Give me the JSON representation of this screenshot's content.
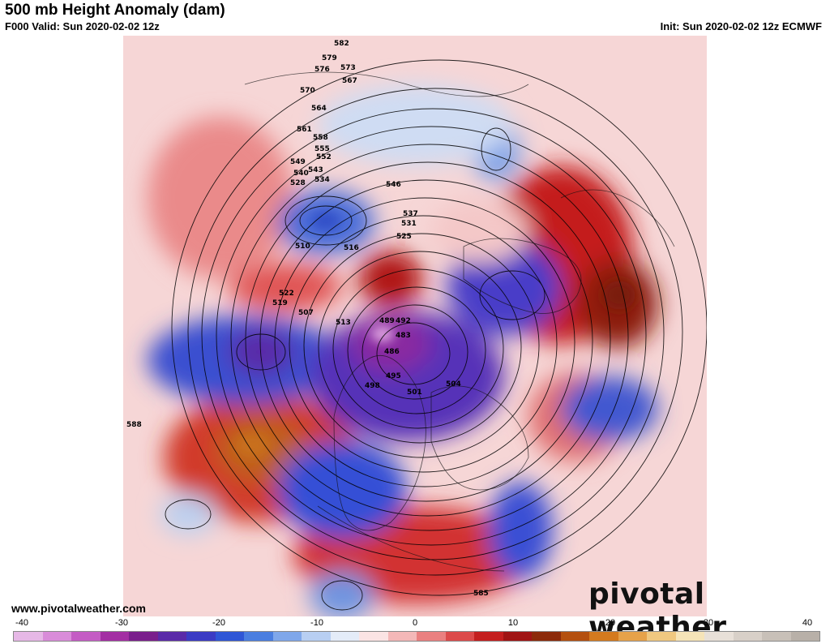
{
  "header": {
    "title": "500 mb Height Anomaly (dam)",
    "valid": "F000 Valid: Sun 2020-02-02 12z",
    "init": "Init: Sun 2020-02-02 12z ECMWF"
  },
  "footer": {
    "url": "www.pivotalweather.com",
    "brand": "pivotal weather"
  },
  "colorbar": {
    "ticks": [
      "-40",
      "-30",
      "-20",
      "-10",
      "0",
      "10",
      "20",
      "30",
      "40"
    ],
    "colors": [
      "#e6b8e6",
      "#d98cd9",
      "#c45cc4",
      "#a32ea3",
      "#7a1f8c",
      "#5a2aa8",
      "#3b3bc4",
      "#2f56d6",
      "#4a7ee0",
      "#7fa7ea",
      "#b8cff2",
      "#e4ecf8",
      "#fbe4e4",
      "#f4b8b8",
      "#ea8080",
      "#dc4a4a",
      "#c41f1f",
      "#a01414",
      "#8c2a0a",
      "#b4500f",
      "#d47a1e",
      "#e6a24a",
      "#f0c880",
      "#f6e4b8",
      "#e8e0d8",
      "#d8d0c8",
      "#c8c0b8",
      "#b8b0a8"
    ]
  },
  "map": {
    "contour_labels": [
      "582",
      "579",
      "576",
      "573",
      "567",
      "570",
      "564",
      "561",
      "558",
      "555",
      "552",
      "549",
      "543",
      "540",
      "534",
      "528",
      "522",
      "519",
      "510",
      "516",
      "546",
      "537",
      "531",
      "525",
      "513",
      "507",
      "504",
      "501",
      "498",
      "495",
      "492",
      "489",
      "486",
      "483",
      "588",
      "585"
    ]
  }
}
